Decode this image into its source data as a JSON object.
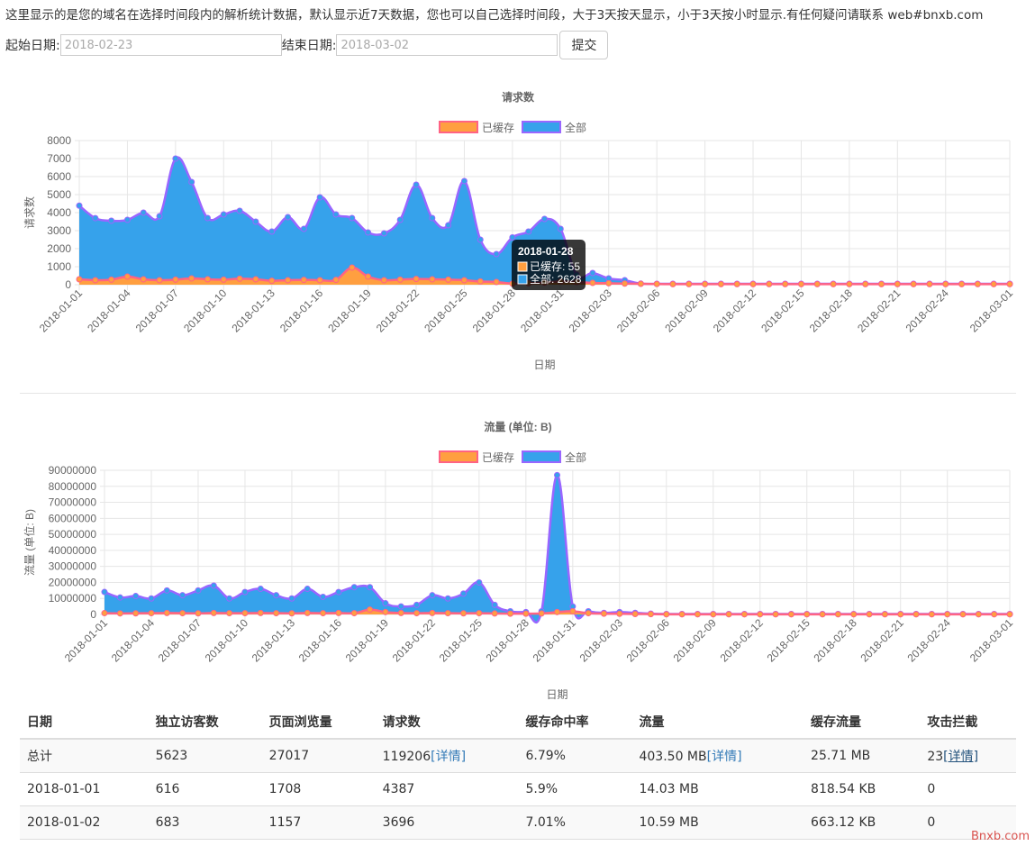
{
  "intro": "这里显示的是您的域名在选择时间段内的解析统计数据，默认显示近7天数据，您也可以自己选择时间段，大于3天按天显示，小于3天按小时显示.有任何疑问请联系 web#bnxb.com",
  "form": {
    "start_label": "起始日期:",
    "start_placeholder": "2018-02-23",
    "end_label": "结束日期:",
    "end_placeholder": "2018-03-02",
    "submit_label": "提交"
  },
  "colors": {
    "cached": "#ff9f40",
    "all": "#36a2eb",
    "cached_border": "#ff6384",
    "all_border": "#9966ff"
  },
  "chart_data": [
    {
      "type": "area",
      "title": "请求数",
      "xlabel": "日期",
      "ylabel": "请求数",
      "ylim": [
        0,
        8000
      ],
      "yticks": [
        0,
        1000,
        2000,
        3000,
        4000,
        5000,
        6000,
        7000,
        8000
      ],
      "legend_position": "top",
      "x": [
        "2018-01-01",
        "2018-01-02",
        "2018-01-03",
        "2018-01-04",
        "2018-01-05",
        "2018-01-06",
        "2018-01-07",
        "2018-01-08",
        "2018-01-09",
        "2018-01-10",
        "2018-01-11",
        "2018-01-12",
        "2018-01-13",
        "2018-01-14",
        "2018-01-15",
        "2018-01-16",
        "2018-01-17",
        "2018-01-18",
        "2018-01-19",
        "2018-01-20",
        "2018-01-21",
        "2018-01-22",
        "2018-01-23",
        "2018-01-24",
        "2018-01-25",
        "2018-01-26",
        "2018-01-27",
        "2018-01-28",
        "2018-01-29",
        "2018-01-30",
        "2018-01-31",
        "2018-02-01",
        "2018-02-02",
        "2018-02-03",
        "2018-02-04",
        "2018-02-05",
        "2018-02-06",
        "2018-02-07",
        "2018-02-08",
        "2018-02-09",
        "2018-02-10",
        "2018-02-11",
        "2018-02-12",
        "2018-02-13",
        "2018-02-14",
        "2018-02-15",
        "2018-02-16",
        "2018-02-17",
        "2018-02-18",
        "2018-02-19",
        "2018-02-20",
        "2018-02-21",
        "2018-02-22",
        "2018-02-23",
        "2018-02-24",
        "2018-02-25",
        "2018-02-26",
        "2018-02-27",
        "2018-03-01"
      ],
      "xtick_labels": [
        "2018-01-01",
        "2018-01-04",
        "2018-01-07",
        "2018-01-10",
        "2018-01-13",
        "2018-01-16",
        "2018-01-19",
        "2018-01-22",
        "2018-01-25",
        "2018-01-28",
        "2018-01-31",
        "2018-02-03",
        "2018-02-06",
        "2018-02-09",
        "2018-02-12",
        "2018-02-15",
        "2018-02-18",
        "2018-02-21",
        "2018-02-24",
        "2018-03-01"
      ],
      "series": [
        {
          "name": "已缓存",
          "values": [
            300,
            250,
            280,
            450,
            300,
            250,
            280,
            350,
            300,
            280,
            330,
            300,
            220,
            250,
            270,
            250,
            270,
            950,
            450,
            250,
            280,
            320,
            300,
            280,
            250,
            180,
            150,
            55,
            80,
            120,
            180,
            150,
            100,
            80,
            60,
            50,
            40,
            30,
            30,
            30,
            30,
            30,
            30,
            30,
            30,
            30,
            30,
            30,
            30,
            30,
            30,
            30,
            30,
            30,
            30,
            30,
            30,
            30,
            30
          ]
        },
        {
          "name": "全部",
          "values": [
            4387,
            3696,
            3550,
            3600,
            4000,
            3800,
            7000,
            5700,
            3700,
            3900,
            4100,
            3500,
            2950,
            3750,
            3100,
            4850,
            3900,
            3700,
            2900,
            2850,
            3600,
            5550,
            3700,
            3300,
            5750,
            2500,
            1700,
            2628,
            2950,
            3650,
            3100,
            550,
            650,
            350,
            250,
            60,
            50,
            50,
            50,
            50,
            50,
            50,
            50,
            50,
            50,
            50,
            50,
            50,
            50,
            50,
            50,
            50,
            50,
            50,
            50,
            50,
            50,
            50,
            50
          ]
        }
      ],
      "tooltip": {
        "date": "2018-01-28",
        "cached_text": "已缓存: 55",
        "all_text": "全部: 2628"
      }
    },
    {
      "type": "area",
      "title": "流量 (单位: B)",
      "xlabel": "日期",
      "ylabel": "流量 (单位: B)",
      "ylim": [
        0,
        90000000
      ],
      "yticks": [
        0,
        10000000,
        20000000,
        30000000,
        40000000,
        50000000,
        60000000,
        70000000,
        80000000,
        90000000
      ],
      "legend_position": "top",
      "x": [
        "2018-01-01",
        "2018-01-02",
        "2018-01-03",
        "2018-01-04",
        "2018-01-05",
        "2018-01-06",
        "2018-01-07",
        "2018-01-08",
        "2018-01-09",
        "2018-01-10",
        "2018-01-11",
        "2018-01-12",
        "2018-01-13",
        "2018-01-14",
        "2018-01-15",
        "2018-01-16",
        "2018-01-17",
        "2018-01-18",
        "2018-01-19",
        "2018-01-20",
        "2018-01-21",
        "2018-01-22",
        "2018-01-23",
        "2018-01-24",
        "2018-01-25",
        "2018-01-26",
        "2018-01-27",
        "2018-01-28",
        "2018-01-29",
        "2018-01-30",
        "2018-01-31",
        "2018-02-01",
        "2018-02-02",
        "2018-02-03",
        "2018-02-04",
        "2018-02-05",
        "2018-02-06",
        "2018-02-07",
        "2018-02-08",
        "2018-02-09",
        "2018-02-10",
        "2018-02-11",
        "2018-02-12",
        "2018-02-13",
        "2018-02-14",
        "2018-02-15",
        "2018-02-16",
        "2018-02-17",
        "2018-02-18",
        "2018-02-19",
        "2018-02-20",
        "2018-02-21",
        "2018-02-22",
        "2018-02-23",
        "2018-02-24",
        "2018-02-25",
        "2018-02-26",
        "2018-02-27",
        "2018-03-01"
      ],
      "xtick_labels": [
        "2018-01-01",
        "2018-01-04",
        "2018-01-07",
        "2018-01-10",
        "2018-01-13",
        "2018-01-16",
        "2018-01-19",
        "2018-01-22",
        "2018-01-25",
        "2018-01-28",
        "2018-01-31",
        "2018-02-03",
        "2018-02-06",
        "2018-02-09",
        "2018-02-12",
        "2018-02-15",
        "2018-02-18",
        "2018-02-21",
        "2018-02-24",
        "2018-03-01"
      ],
      "series": [
        {
          "name": "已缓存",
          "values": [
            818540,
            663120,
            700000,
            800000,
            900000,
            800000,
            700000,
            900000,
            800000,
            800000,
            900000,
            800000,
            700000,
            900000,
            800000,
            900000,
            800000,
            3000000,
            1500000,
            900000,
            800000,
            900000,
            800000,
            700000,
            800000,
            600000,
            500000,
            500000,
            600000,
            1500000,
            2000000,
            800000,
            500000,
            400000,
            300000,
            200000,
            100000,
            100000,
            100000,
            100000,
            100000,
            100000,
            100000,
            100000,
            100000,
            100000,
            100000,
            100000,
            100000,
            100000,
            100000,
            100000,
            100000,
            100000,
            100000,
            100000,
            100000,
            100000,
            100000
          ]
        },
        {
          "name": "全部",
          "values": [
            14030000,
            10590000,
            11500000,
            10000000,
            15000000,
            12000000,
            15000000,
            18000000,
            10000000,
            14000000,
            16000000,
            12000000,
            10000000,
            16000000,
            11000000,
            14000000,
            17000000,
            17000000,
            7000000,
            5000000,
            6000000,
            12000000,
            10000000,
            13000000,
            20000000,
            6000000,
            2000000,
            1500000,
            2000000,
            87000000,
            5000000,
            2000000,
            1000000,
            1500000,
            1000000,
            500000,
            300000,
            300000,
            300000,
            300000,
            300000,
            300000,
            300000,
            300000,
            300000,
            300000,
            300000,
            300000,
            300000,
            300000,
            300000,
            300000,
            300000,
            300000,
            300000,
            300000,
            300000,
            300000,
            300000
          ]
        }
      ]
    }
  ],
  "table": {
    "headers": [
      "日期",
      "独立访客数",
      "页面浏览量",
      "请求数",
      "缓存命中率",
      "流量",
      "缓存流量",
      "攻击拦截"
    ],
    "detail_link": "[详情]",
    "total": {
      "date": "总计",
      "uv": "5623",
      "pv": "27017",
      "req": "119206",
      "hit": "6.79%",
      "flow": "403.50 MB",
      "cache_flow": "25.71 MB",
      "attack": "23"
    },
    "rows": [
      {
        "date": "2018-01-01",
        "uv": "616",
        "pv": "1708",
        "req": "4387",
        "hit": "5.9%",
        "flow": "14.03 MB",
        "cache_flow": "818.54 KB",
        "attack": "0"
      },
      {
        "date": "2018-01-02",
        "uv": "683",
        "pv": "1157",
        "req": "3696",
        "hit": "7.01%",
        "flow": "10.59 MB",
        "cache_flow": "663.12 KB",
        "attack": "0"
      }
    ]
  },
  "watermark": "Bnxb.com"
}
